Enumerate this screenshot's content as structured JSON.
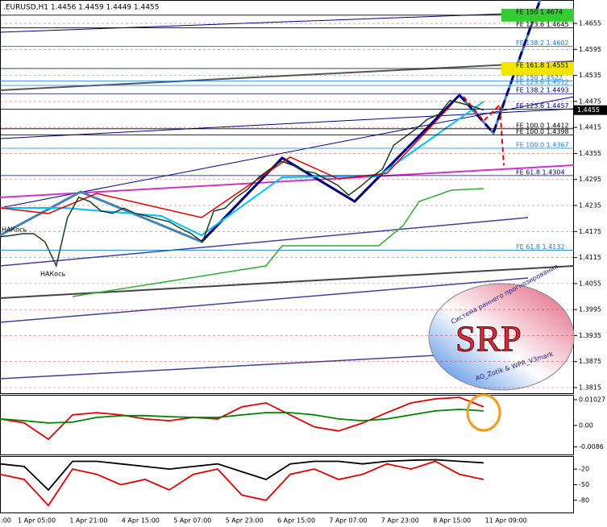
{
  "chart_data": [
    {
      "type": "line",
      "title": ".EURUSD,H1  1.4456 1.4459 1.4449 1.4455",
      "color": "#1a3d1a",
      "values": [
        1.4163,
        1.4166,
        1.417,
        1.417,
        1.4151,
        1.4096,
        1.4207,
        1.4254,
        1.4244,
        1.4222,
        1.4217,
        1.4229,
        1.4217,
        1.4211,
        1.4204,
        1.4198,
        1.4183,
        1.417,
        1.4151,
        1.4222,
        1.4229,
        1.4254,
        1.4272,
        1.43,
        1.4319,
        1.4337,
        1.4328,
        1.4315,
        1.431,
        1.4296,
        1.4282,
        1.4259,
        1.4278,
        1.43,
        1.4319,
        1.4374,
        1.4393,
        1.4412,
        1.4434,
        1.4445,
        1.4477,
        1.4471,
        1.4464,
        1.4455
      ],
      "current_price": 1.4455,
      "ylim": [
        1.3802,
        1.4709
      ],
      "yticks": [
        1.4655,
        1.4595,
        1.4535,
        1.4475,
        1.4415,
        1.4355,
        1.4295,
        1.4235,
        1.4175,
        1.4115,
        1.4055,
        1.3995,
        1.3935,
        1.3875,
        1.3815
      ],
      "grid": true,
      "time_labels": [
        ":00",
        "1 Apr 05:00",
        "1 Apr 21:00",
        "4 Apr 15:00",
        "5 Apr 07:00",
        "5 Apr 23:00",
        "6 Apr 15:00",
        "7 Apr 07:00",
        "7 Apr 23:00",
        "8 Apr 15:00",
        "11 Apr 09:00"
      ],
      "annotations": [
        {
          "text": "FE 150  1.4674",
          "value": 1.4674,
          "color": "#000000",
          "background": "#33cc33"
        },
        {
          "text": "FE 123.6  1.4645",
          "value": 1.4645,
          "color": "#000000"
        },
        {
          "text": "FE 138.2  1.4602",
          "value": 1.4602,
          "color": "#1e7fd0"
        },
        {
          "text": "FE 161.8  1.4551",
          "value": 1.4551,
          "color": "#000000",
          "background": "#f2e600"
        },
        {
          "text": "FE 150  1.4522",
          "value": 1.4522,
          "color": "#1e7fd0"
        },
        {
          "text": "FE 123.6  1.4512",
          "value": 1.4512,
          "color": "#1e7fd0"
        },
        {
          "text": "FE 138.2  1.4493",
          "value": 1.4493,
          "color": "#000080"
        },
        {
          "text": "FE 123.6  1.4457",
          "value": 1.4457,
          "color": "#000080"
        },
        {
          "text": "FE 100.0  1.4412",
          "value": 1.4412,
          "color": "#000000"
        },
        {
          "text": "FE 100.0  1.4398",
          "value": 1.4398,
          "color": "#000000"
        },
        {
          "text": "FE 100.0  1.4367",
          "value": 1.4367,
          "color": "#1e7fd0"
        },
        {
          "text": "FE 61.8  1.4304",
          "value": 1.4304,
          "color": "#000080"
        },
        {
          "text": "FE 61.8  1.4132",
          "value": 1.4132,
          "color": "#1e7fd0"
        }
      ],
      "notes": [
        "НАКось",
        "НАКось"
      ],
      "logo": {
        "caption": "Система раннего прогнозирования",
        "name": "SRP",
        "credit": "AO_Zotik & WPR_V3mark"
      }
    },
    {
      "type": "line",
      "ylim": [
        -0.0119,
        0.0122
      ],
      "yticks": [
        0.01027,
        {
          "value": 0,
          "label": "0.00"
        },
        -0.0086
      ],
      "series": [
        {
          "color": "#e00000",
          "values": [
            0.0026,
            0.001,
            -0.0055,
            0.0042,
            0.0051,
            0.0042,
            0.0026,
            0.0019,
            0.0032,
            0.0026,
            0.0074,
            0.009,
            0.0042,
            -0.0006,
            -0.0022,
            0.001,
            0.0051,
            0.009,
            0.0106,
            0.0112,
            0.0074
          ]
        },
        {
          "color": "#008000",
          "values": [
            0.0026,
            0.0019,
            0.001,
            0.0013,
            0.0032,
            0.0039,
            0.0039,
            0.0035,
            0.0032,
            0.0032,
            0.0042,
            0.0051,
            0.0051,
            0.0042,
            0.0026,
            0.0019,
            0.0026,
            0.0042,
            0.0058,
            0.0064,
            0.0058
          ]
        }
      ]
    },
    {
      "type": "line",
      "ylim": [
        -105,
        5
      ],
      "yticks": [
        -20,
        -50,
        -80
      ],
      "series": [
        {
          "color": "#000000",
          "values": [
            -10,
            -15,
            -60,
            -5,
            -5,
            -10,
            -15,
            -20,
            -15,
            -10,
            -25,
            -40,
            -10,
            -5,
            -5,
            -10,
            -5,
            -3,
            -2,
            -5,
            -8
          ]
        },
        {
          "color": "#e00000",
          "values": [
            -30,
            -40,
            -90,
            -20,
            -30,
            -50,
            -40,
            -60,
            -30,
            -20,
            -70,
            -80,
            -30,
            -20,
            -40,
            -30,
            -10,
            -20,
            -5,
            -30,
            -40
          ]
        }
      ]
    }
  ]
}
